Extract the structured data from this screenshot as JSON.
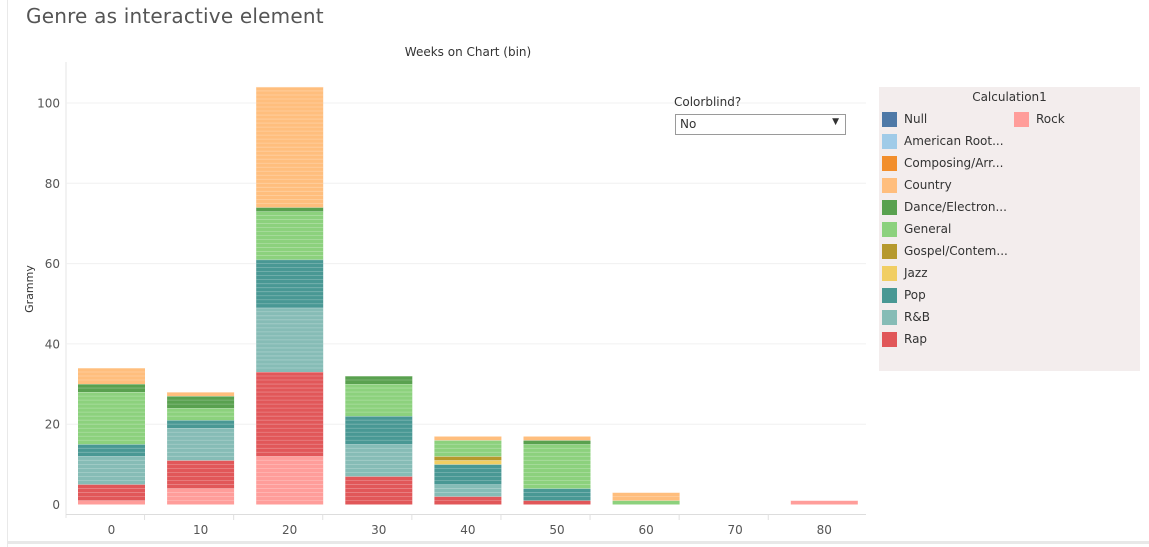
{
  "page": {
    "title": "Genre as interactive element"
  },
  "colorblind": {
    "label": "Colorblind?",
    "selected": "No"
  },
  "legend": {
    "title": "Calculation1",
    "items": [
      {
        "label": "Null",
        "color": "#4e79a7"
      },
      {
        "label": "American Root...",
        "color": "#a0cbe8"
      },
      {
        "label": "Composing/Arr...",
        "color": "#f28e2b"
      },
      {
        "label": "Country",
        "color": "#ffbe7d"
      },
      {
        "label": "Dance/Electron...",
        "color": "#59a14f"
      },
      {
        "label": "General",
        "color": "#8cd17d"
      },
      {
        "label": "Gospel/Contem...",
        "color": "#b6992d"
      },
      {
        "label": "Jazz",
        "color": "#f1ce63"
      },
      {
        "label": "Pop",
        "color": "#499894"
      },
      {
        "label": "R&B",
        "color": "#86bcb6"
      },
      {
        "label": "Rap",
        "color": "#e15759"
      },
      {
        "label": "Rock",
        "color": "#ff9d9a"
      }
    ]
  },
  "chart_data": {
    "type": "bar",
    "stacked": true,
    "title": "Weeks on Chart (bin)",
    "xlabel": "",
    "ylabel": "Grammy",
    "ylim": [
      -3,
      110
    ],
    "yticks": [
      0,
      20,
      40,
      60,
      80,
      100
    ],
    "categories": [
      "0",
      "10",
      "20",
      "30",
      "40",
      "50",
      "60",
      "70",
      "80"
    ],
    "grid": true,
    "legend_position": "right",
    "series": [
      {
        "name": "Rock",
        "color": "#ff9d9a",
        "values": [
          1,
          4,
          12,
          0,
          0,
          0,
          0,
          0,
          1
        ]
      },
      {
        "name": "Rap",
        "color": "#e15759",
        "values": [
          4,
          7,
          21,
          7,
          2,
          1,
          0,
          0,
          0
        ]
      },
      {
        "name": "R&B",
        "color": "#86bcb6",
        "values": [
          7,
          8,
          16,
          8,
          3,
          0,
          0,
          0,
          0
        ]
      },
      {
        "name": "Pop",
        "color": "#499894",
        "values": [
          3,
          2,
          12,
          7,
          5,
          3,
          0,
          0,
          0
        ]
      },
      {
        "name": "Jazz",
        "color": "#f1ce63",
        "values": [
          0,
          0,
          0,
          0,
          1,
          0,
          0,
          0,
          0
        ]
      },
      {
        "name": "Gospel/Contem...",
        "color": "#b6992d",
        "values": [
          0,
          0,
          0,
          0,
          1,
          0,
          0,
          0,
          0
        ]
      },
      {
        "name": "General",
        "color": "#8cd17d",
        "values": [
          13,
          3,
          12,
          8,
          4,
          11,
          1,
          0,
          0
        ]
      },
      {
        "name": "Dance/Electron...",
        "color": "#59a14f",
        "values": [
          2,
          3,
          1,
          2,
          0,
          1,
          0,
          0,
          0
        ]
      },
      {
        "name": "Country",
        "color": "#ffbe7d",
        "values": [
          4,
          1,
          30,
          0,
          1,
          1,
          2,
          0,
          0
        ]
      }
    ]
  }
}
